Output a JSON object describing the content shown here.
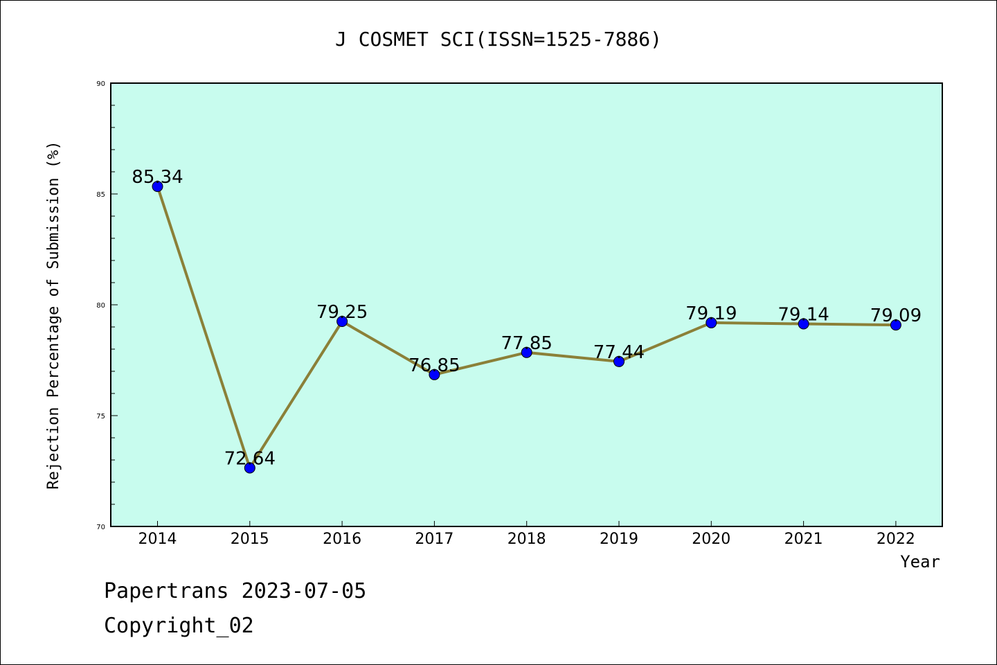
{
  "chart_data": {
    "type": "line",
    "title": "J COSMET SCI(ISSN=1525-7886)",
    "xlabel": "Year",
    "ylabel": "Rejection Percentage of Submission (%)",
    "categories": [
      "2014",
      "2015",
      "2016",
      "2017",
      "2018",
      "2019",
      "2020",
      "2021",
      "2022"
    ],
    "values": [
      85.34,
      72.64,
      79.25,
      76.85,
      77.85,
      77.44,
      79.19,
      79.14,
      79.09
    ],
    "data_labels": [
      "85.34",
      "72.64",
      "79.25",
      "76.85",
      "77.85",
      "77.44",
      "79.19",
      "79.14",
      "79.09"
    ],
    "ylim": [
      70,
      90
    ],
    "yticks": [
      "70",
      "75",
      "80",
      "85",
      "90"
    ],
    "grid": false,
    "colors": {
      "plot_background": "#c8fcee",
      "line": "#8b8038",
      "marker": "#0000ff"
    }
  },
  "footer": {
    "line1": "Papertrans 2023-07-05",
    "line2": "Copyright_02"
  }
}
